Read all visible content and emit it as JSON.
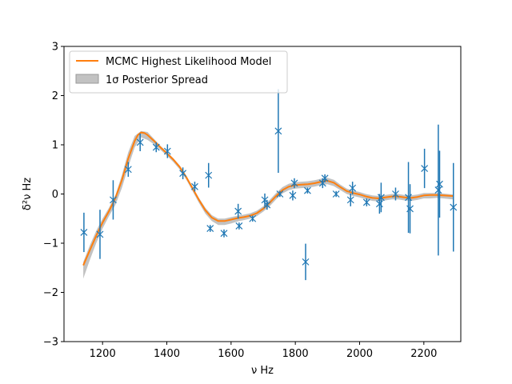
{
  "chart_data": {
    "type": "scatter",
    "xlabel": "ν Hz",
    "ylabel": "δ²ν Hz",
    "xlim": [
      1080,
      2315
    ],
    "ylim": [
      -3,
      3
    ],
    "xticks": [
      1200,
      1400,
      1600,
      1800,
      2000,
      2200
    ],
    "yticks": [
      -3,
      -2,
      -1,
      0,
      1,
      2,
      3
    ],
    "grid": false,
    "legend_position": "top-left",
    "colors": {
      "model": "#ff7f0e",
      "spread": "#999999",
      "data": "#1f77b4"
    },
    "series": [
      {
        "name": "MCMC Highest Likelihood Model",
        "kind": "line",
        "x": [
          1140,
          1160,
          1180,
          1200,
          1220,
          1240,
          1260,
          1280,
          1300,
          1310,
          1320,
          1330,
          1340,
          1360,
          1380,
          1400,
          1420,
          1440,
          1460,
          1480,
          1500,
          1520,
          1540,
          1560,
          1580,
          1600,
          1620,
          1640,
          1660,
          1680,
          1700,
          1720,
          1740,
          1760,
          1780,
          1800,
          1820,
          1840,
          1860,
          1880,
          1900,
          1920,
          1940,
          1960,
          1980,
          2000,
          2020,
          2040,
          2060,
          2080,
          2100,
          2120,
          2140,
          2160,
          2180,
          2200,
          2220,
          2240,
          2260,
          2290
        ],
        "y": [
          -1.45,
          -1.15,
          -0.85,
          -0.58,
          -0.35,
          -0.08,
          0.28,
          0.72,
          1.08,
          1.2,
          1.25,
          1.24,
          1.2,
          1.08,
          0.95,
          0.83,
          0.7,
          0.55,
          0.35,
          0.12,
          -0.12,
          -0.33,
          -0.48,
          -0.55,
          -0.55,
          -0.52,
          -0.49,
          -0.47,
          -0.44,
          -0.39,
          -0.3,
          -0.18,
          -0.04,
          0.08,
          0.15,
          0.18,
          0.19,
          0.2,
          0.22,
          0.25,
          0.27,
          0.23,
          0.14,
          0.06,
          0.02,
          -0.01,
          -0.05,
          -0.08,
          -0.09,
          -0.07,
          -0.05,
          -0.05,
          -0.07,
          -0.08,
          -0.06,
          -0.03,
          -0.02,
          -0.02,
          -0.03,
          -0.04
        ]
      },
      {
        "name": "1σ Posterior Spread",
        "kind": "band",
        "x": [
          1140,
          1160,
          1180,
          1200,
          1220,
          1240,
          1260,
          1280,
          1300,
          1320,
          1340,
          1360,
          1380,
          1400,
          1420,
          1440,
          1460,
          1480,
          1500,
          1520,
          1540,
          1560,
          1580,
          1600,
          1620,
          1640,
          1660,
          1680,
          1700,
          1720,
          1740,
          1760,
          1780,
          1800,
          1820,
          1840,
          1860,
          1880,
          1900,
          1920,
          1940,
          1960,
          1980,
          2000,
          2020,
          2040,
          2060,
          2080,
          2100,
          2120,
          2140,
          2160,
          2180,
          2200,
          2220,
          2240,
          2260,
          2290
        ],
        "upper": [
          -1.38,
          -1.05,
          -0.75,
          -0.5,
          -0.28,
          -0.02,
          0.38,
          0.85,
          1.18,
          1.28,
          1.26,
          1.12,
          0.98,
          0.86,
          0.73,
          0.58,
          0.38,
          0.14,
          -0.08,
          -0.28,
          -0.43,
          -0.5,
          -0.5,
          -0.47,
          -0.44,
          -0.42,
          -0.39,
          -0.34,
          -0.25,
          -0.12,
          0.02,
          0.14,
          0.21,
          0.24,
          0.25,
          0.26,
          0.28,
          0.31,
          0.33,
          0.29,
          0.19,
          0.11,
          0.07,
          0.04,
          0.0,
          -0.03,
          -0.04,
          -0.02,
          0.0,
          0.0,
          -0.02,
          -0.03,
          -0.01,
          0.02,
          0.02,
          0.02,
          0.01,
          -0.01
        ],
        "lower": [
          -1.72,
          -1.35,
          -1.0,
          -0.7,
          -0.45,
          -0.22,
          0.12,
          0.55,
          0.95,
          1.15,
          1.1,
          1.01,
          0.9,
          0.78,
          0.65,
          0.5,
          0.3,
          0.06,
          -0.18,
          -0.4,
          -0.55,
          -0.63,
          -0.63,
          -0.6,
          -0.56,
          -0.53,
          -0.5,
          -0.45,
          -0.36,
          -0.25,
          -0.11,
          0.01,
          0.08,
          0.11,
          0.12,
          0.13,
          0.15,
          0.18,
          0.2,
          0.16,
          0.08,
          0.0,
          -0.04,
          -0.07,
          -0.11,
          -0.14,
          -0.15,
          -0.13,
          -0.11,
          -0.11,
          -0.13,
          -0.14,
          -0.12,
          -0.09,
          -0.09,
          -0.08,
          -0.09,
          -0.11
        ]
      },
      {
        "kind": "errorbar",
        "points": [
          {
            "x": 1142,
            "y": -0.78,
            "err": 0.4
          },
          {
            "x": 1192,
            "y": -0.82,
            "err": 0.5
          },
          {
            "x": 1233,
            "y": -0.12,
            "err": 0.4
          },
          {
            "x": 1280,
            "y": 0.5,
            "err": 0.15
          },
          {
            "x": 1317,
            "y": 1.05,
            "err": 0.18
          },
          {
            "x": 1367,
            "y": 0.95,
            "err": 0.1
          },
          {
            "x": 1402,
            "y": 0.87,
            "err": 0.14
          },
          {
            "x": 1450,
            "y": 0.42,
            "err": 0.12
          },
          {
            "x": 1487,
            "y": 0.15,
            "err": 0.1
          },
          {
            "x": 1530,
            "y": 0.38,
            "err": 0.25
          },
          {
            "x": 1535,
            "y": -0.7,
            "err": 0.07
          },
          {
            "x": 1578,
            "y": -0.8,
            "err": 0.08
          },
          {
            "x": 1622,
            "y": -0.35,
            "err": 0.15
          },
          {
            "x": 1625,
            "y": -0.65,
            "err": 0.07
          },
          {
            "x": 1667,
            "y": -0.5,
            "err": 0.06
          },
          {
            "x": 1705,
            "y": -0.12,
            "err": 0.13
          },
          {
            "x": 1712,
            "y": -0.22,
            "err": 0.1
          },
          {
            "x": 1747,
            "y": 1.28,
            "err": 0.85
          },
          {
            "x": 1752,
            "y": 0.0,
            "err": 0.06
          },
          {
            "x": 1792,
            "y": -0.03,
            "err": 0.1
          },
          {
            "x": 1797,
            "y": 0.22,
            "err": 0.1
          },
          {
            "x": 1832,
            "y": -1.38,
            "err": 0.37
          },
          {
            "x": 1838,
            "y": 0.07,
            "err": 0.06
          },
          {
            "x": 1885,
            "y": 0.22,
            "err": 0.1
          },
          {
            "x": 1892,
            "y": 0.32,
            "err": 0.08
          },
          {
            "x": 1927,
            "y": 0.0,
            "err": 0.06
          },
          {
            "x": 1972,
            "y": -0.12,
            "err": 0.13
          },
          {
            "x": 1978,
            "y": 0.12,
            "err": 0.13
          },
          {
            "x": 2022,
            "y": -0.17,
            "err": 0.08
          },
          {
            "x": 2062,
            "y": -0.2,
            "err": 0.2
          },
          {
            "x": 2067,
            "y": -0.07,
            "err": 0.3
          },
          {
            "x": 2112,
            "y": 0.0,
            "err": 0.13
          },
          {
            "x": 2152,
            "y": -0.07,
            "err": 0.72
          },
          {
            "x": 2157,
            "y": -0.3,
            "err": 0.5
          },
          {
            "x": 2202,
            "y": 0.52,
            "err": 0.4
          },
          {
            "x": 2245,
            "y": 0.08,
            "err": 1.33
          },
          {
            "x": 2249,
            "y": 0.2,
            "err": 0.68
          },
          {
            "x": 2292,
            "y": -0.27,
            "err": 0.9
          }
        ]
      }
    ],
    "legend": [
      {
        "label": "MCMC Highest Likelihood Model",
        "style": "line"
      },
      {
        "label": "1σ Posterior Spread",
        "style": "patch"
      }
    ]
  }
}
